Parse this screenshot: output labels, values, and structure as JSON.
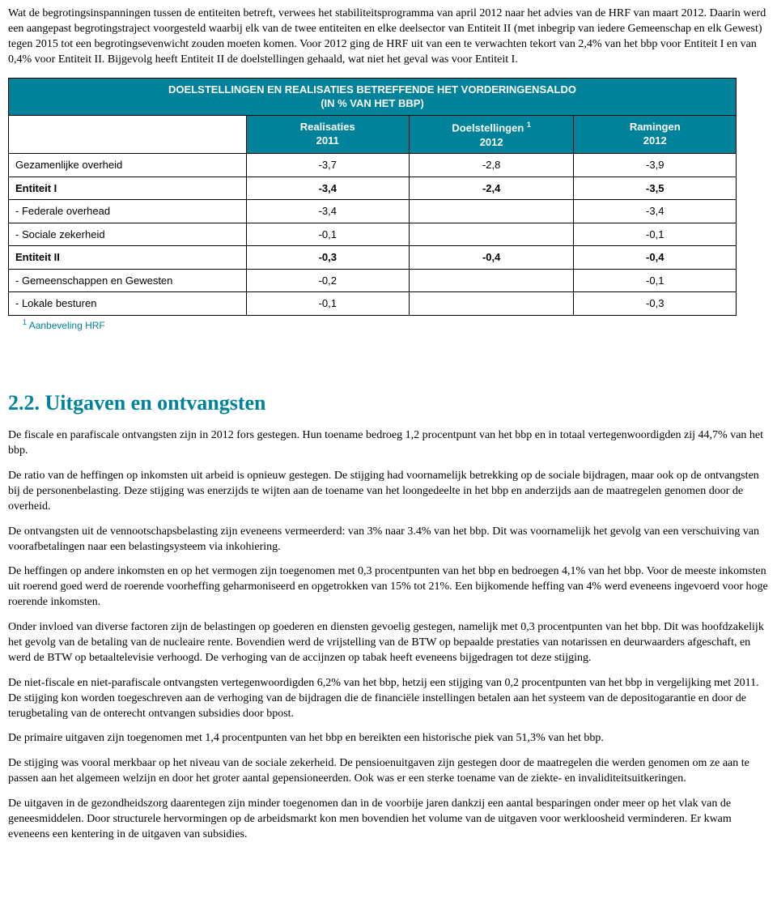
{
  "intro_paragraph": "Wat de begrotingsinspanningen tussen de entiteiten betreft, verwees het stabiliteitsprogramma van april 2012 naar het advies van de HRF van maart 2012. Daarin werd een aangepast begrotingstraject voorgesteld waarbij elk van de twee entiteiten en elke deelsector van Entiteit II (met inbegrip van iedere Gemeenschap en elk Gewest) tegen 2015 tot een begrotingsevenwicht zouden moeten komen. Voor 2012 ging de HRF uit van een te verwachten tekort van 2,4% van het bbp voor Entiteit I en van 0,4% voor Entiteit II. Bijgevolg heeft Entiteit II de doelstellingen gehaald, wat niet het geval was voor Entiteit I.",
  "table": {
    "title_line1": "DOELSTELLINGEN EN REALISATIES BETREFFENDE HET VORDERINGENSALDO",
    "title_line2": "(IN % VAN HET BBP)",
    "col_realisaties": "Realisaties",
    "col_realisaties_year": "2011",
    "col_doelstellingen": "Doelstellingen ",
    "col_doelstellingen_sup": "1",
    "col_doelstellingen_year": "2012",
    "col_ramingen": "Ramingen",
    "col_ramingen_year": "2012",
    "rows": [
      {
        "label": "Gezamenlijke overheid",
        "r": "-3,7",
        "d": "-2,8",
        "e": "-3,9",
        "bold": false
      },
      {
        "label": "Entiteit I",
        "r": "-3,4",
        "d": "-2,4",
        "e": "-3,5",
        "bold": true
      },
      {
        "label": "- Federale overhead",
        "r": "-3,4",
        "d": "",
        "e": "-3,4",
        "bold": false
      },
      {
        "label": "- Sociale zekerheid",
        "r": "-0,1",
        "d": "",
        "e": "-0,1",
        "bold": false
      },
      {
        "label": "Entiteit II",
        "r": "-0,3",
        "d": "-0,4",
        "e": "-0,4",
        "bold": true
      },
      {
        "label": "- Gemeenschappen en Gewesten",
        "r": "-0,2",
        "d": "",
        "e": "-0,1",
        "bold": false
      },
      {
        "label": "- Lokale besturen",
        "r": "-0,1",
        "d": "",
        "e": "-0,3",
        "bold": false
      }
    ],
    "footnote_sup": "1",
    "footnote_text": " Aanbeveling HRF"
  },
  "section_heading": "2.2. Uitgaven en ontvangsten",
  "paragraphs": {
    "p1": "De fiscale en parafiscale ontvangsten zijn in 2012 fors gestegen. Hun toename bedroeg 1,2 procentpunt van het bbp en in totaal vertegenwoordigden zij 44,7% van het bbp.",
    "p2": "De ratio van de heffingen op inkomsten uit arbeid is opnieuw gestegen. De stijging had voornamelijk betrekking op de sociale bijdragen, maar ook op de ontvangsten bij de personenbelasting. Deze stijging was enerzijds te wijten aan de toename van het loongedeelte in het bbp en anderzijds aan de maatregelen genomen door de overheid.",
    "p3": "De ontvangsten uit de vennootschapsbelasting zijn eveneens vermeerderd: van 3% naar 3.4% van het bbp. Dit was voornamelijk het gevolg van een verschuiving van voorafbetalingen naar een belastingsysteem via inkohiering.",
    "p4": "De heffingen op andere inkomsten en op het vermogen zijn toegenomen met 0,3 procentpunten van het bbp en bedroegen 4,1% van het bbp. Voor de meeste inkomsten uit roerend goed werd de roerende voorheffing geharmoniseerd en opgetrokken van 15% tot 21%. Een bijkomende heffing van 4% werd eveneens ingevoerd voor hoge roerende inkomsten.",
    "p5": "Onder invloed van diverse factoren zijn de belastingen op goederen en diensten gevoelig gestegen, namelijk met 0,3 procentpunten van het bbp. Dit was hoofdzakelijk het gevolg van de betaling van de nucleaire rente. Bovendien werd de vrijstelling van de BTW op bepaalde prestaties van notarissen en deurwaarders afgeschaft, en werd de BTW op betaaltelevisie verhoogd. De verhoging van de accijnzen op tabak heeft eveneens bijgedragen tot deze stijging.",
    "p6": "De niet-fiscale en niet-parafiscale ontvangsten vertegenwoordigden 6,2% van het bbp, hetzij een stijging van 0,2 procentpunten van het bbp in vergelijking met 2011. De stijging kon worden toegeschreven aan de verhoging van de bijdragen die de financiële instellingen betalen aan het systeem van de depositogarantie en door de terugbetaling van de onterecht ontvangen subsidies door bpost.",
    "p7": "De primaire uitgaven zijn toegenomen met 1,4 procentpunten van het bbp en bereikten een historische piek van 51,3% van het bbp.",
    "p8": "De stijging was vooral merkbaar op het niveau van de sociale zekerheid. De pensioenuitgaven zijn gestegen door de maatregelen die werden genomen om ze aan te passen aan het algemeen welzijn en door het groter aantal gepensioneerden. Ook was er een sterke toename van de ziekte- en invaliditeitsuitkeringen.",
    "p9": "De uitgaven in de gezondheidszorg daarentegen zijn minder toegenomen dan in de voorbije jaren dankzij een aantal besparingen onder meer op het vlak van de geneesmiddelen. Door structurele hervormingen op de arbeidsmarkt kon men bovendien het volume van de uitgaven voor werkloosheid verminderen. Er kwam eveneens een kentering in de uitgaven van subsidies."
  }
}
